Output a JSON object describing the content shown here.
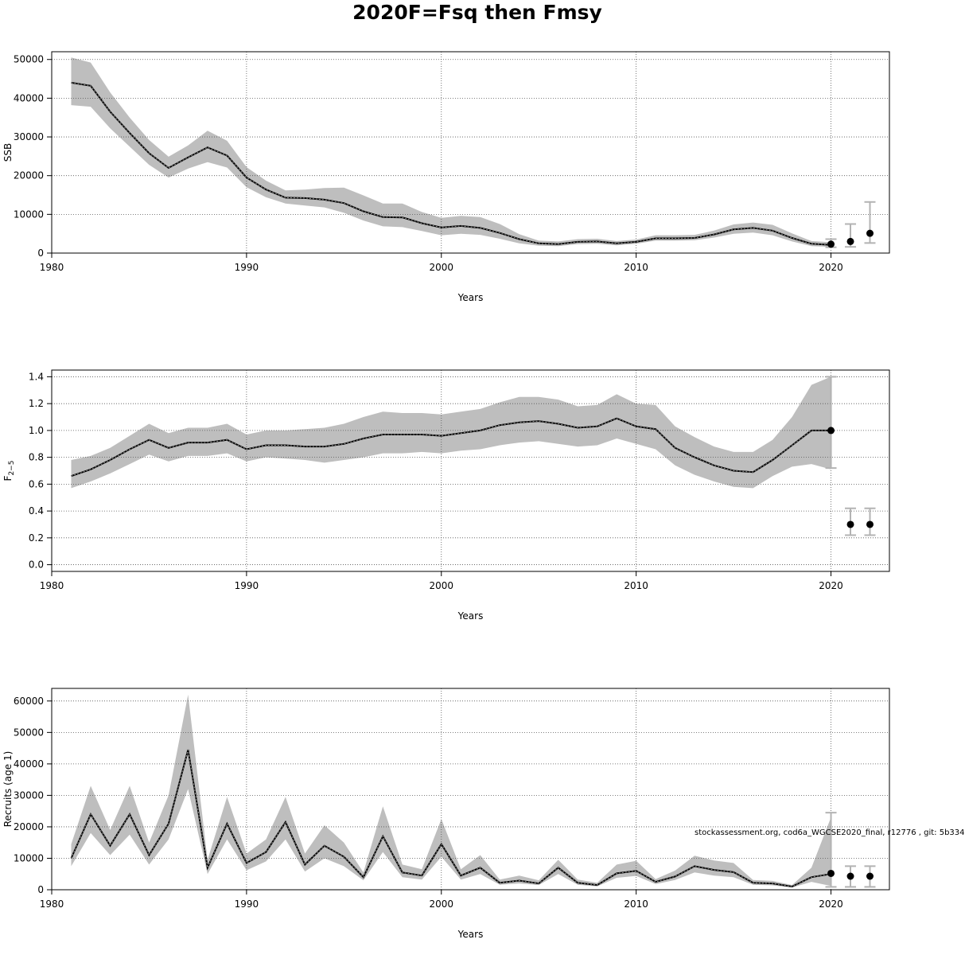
{
  "title": "2020F=Fsq then Fmsy",
  "footnote": "stockassessment.org, cod6a_WGCSE2020_final, r12776 , git: 5b334",
  "colors": {
    "band": "#bebebe",
    "line": "#000000",
    "grid": "#555555",
    "errorbar": "#b3b3b3"
  },
  "chart_data": [
    {
      "type": "area",
      "name": "ssb-chart",
      "xlabel": "Years",
      "ylabel": "SSB",
      "xlim": [
        1980,
        2023
      ],
      "ylim": [
        0,
        52000
      ],
      "xticks": [
        1980,
        1990,
        2000,
        2010,
        2020
      ],
      "yticks": [
        0,
        10000,
        20000,
        30000,
        40000,
        50000
      ],
      "grid": true,
      "years": [
        1981,
        1982,
        1983,
        1984,
        1985,
        1986,
        1987,
        1988,
        1989,
        1990,
        1991,
        1992,
        1993,
        1994,
        1995,
        1996,
        1997,
        1998,
        1999,
        2000,
        2001,
        2002,
        2003,
        2004,
        2005,
        2006,
        2007,
        2008,
        2009,
        2010,
        2011,
        2012,
        2013,
        2014,
        2015,
        2016,
        2017,
        2018,
        2019,
        2020
      ],
      "estimate": [
        44000,
        43200,
        36500,
        31000,
        25800,
        22000,
        24700,
        27300,
        25200,
        19500,
        16400,
        14300,
        14200,
        13800,
        12900,
        10800,
        9300,
        9200,
        7700,
        6600,
        7000,
        6500,
        5200,
        3600,
        2500,
        2300,
        2900,
        3000,
        2500,
        2900,
        3800,
        3800,
        3900,
        4800,
        6100,
        6500,
        5800,
        3900,
        2400,
        2100
      ],
      "lower": [
        38200,
        37800,
        32200,
        27500,
        22800,
        19500,
        21800,
        23500,
        22100,
        17000,
        14400,
        12800,
        12300,
        11800,
        10400,
        8400,
        6900,
        6700,
        5700,
        4600,
        5000,
        4700,
        3700,
        2500,
        1900,
        1800,
        2300,
        2400,
        2000,
        2400,
        3200,
        3200,
        3300,
        4000,
        5000,
        5300,
        4600,
        3000,
        1800,
        1600
      ],
      "upper": [
        50500,
        49200,
        41500,
        35000,
        29200,
        24900,
        27800,
        31600,
        29000,
        22200,
        18700,
        16200,
        16400,
        16800,
        16900,
        14900,
        12800,
        12800,
        10600,
        9100,
        9600,
        9300,
        7500,
        4900,
        3200,
        3000,
        3600,
        3700,
        3100,
        3500,
        4600,
        4600,
        4700,
        5800,
        7400,
        7900,
        7300,
        5100,
        3100,
        2800
      ],
      "forecast": [
        {
          "year": 2020,
          "median": 2300,
          "low": 1500,
          "high": 3600
        },
        {
          "year": 2021,
          "median": 3000,
          "low": 1600,
          "high": 7500
        },
        {
          "year": 2022,
          "median": 5100,
          "low": 2600,
          "high": 13200
        }
      ]
    },
    {
      "type": "area",
      "name": "f-chart",
      "xlabel": "Years",
      "ylabel_main": "F",
      "ylabel_sub": "2−5",
      "xlim": [
        1980,
        2023
      ],
      "ylim": [
        -0.05,
        1.45
      ],
      "xticks": [
        1980,
        1990,
        2000,
        2010,
        2020
      ],
      "yticks": [
        0.0,
        0.2,
        0.4,
        0.6,
        0.8,
        1.0,
        1.2,
        1.4
      ],
      "ytick_labels": [
        "0.0",
        "0.2",
        "0.4",
        "0.6",
        "0.8",
        "1.0",
        "1.2",
        "1.4"
      ],
      "grid": true,
      "years": [
        1981,
        1982,
        1983,
        1984,
        1985,
        1986,
        1987,
        1988,
        1989,
        1990,
        1991,
        1992,
        1993,
        1994,
        1995,
        1996,
        1997,
        1998,
        1999,
        2000,
        2001,
        2002,
        2003,
        2004,
        2005,
        2006,
        2007,
        2008,
        2009,
        2010,
        2011,
        2012,
        2013,
        2014,
        2015,
        2016,
        2017,
        2018,
        2019,
        2020
      ],
      "estimate": [
        0.66,
        0.71,
        0.78,
        0.86,
        0.93,
        0.87,
        0.91,
        0.91,
        0.93,
        0.86,
        0.89,
        0.89,
        0.88,
        0.88,
        0.9,
        0.94,
        0.97,
        0.97,
        0.97,
        0.96,
        0.98,
        1.0,
        1.04,
        1.06,
        1.07,
        1.05,
        1.02,
        1.03,
        1.09,
        1.03,
        1.01,
        0.87,
        0.8,
        0.74,
        0.7,
        0.69,
        0.78,
        0.89,
        1.0,
        1.0
      ],
      "lower": [
        0.57,
        0.62,
        0.68,
        0.75,
        0.82,
        0.77,
        0.81,
        0.81,
        0.83,
        0.77,
        0.8,
        0.79,
        0.78,
        0.76,
        0.78,
        0.8,
        0.83,
        0.83,
        0.84,
        0.83,
        0.85,
        0.86,
        0.89,
        0.91,
        0.92,
        0.9,
        0.88,
        0.89,
        0.94,
        0.9,
        0.86,
        0.74,
        0.67,
        0.62,
        0.58,
        0.57,
        0.66,
        0.73,
        0.75,
        0.71
      ],
      "upper": [
        0.78,
        0.81,
        0.87,
        0.96,
        1.05,
        0.98,
        1.02,
        1.02,
        1.05,
        0.97,
        1.0,
        1.0,
        1.01,
        1.02,
        1.05,
        1.1,
        1.14,
        1.13,
        1.13,
        1.12,
        1.14,
        1.16,
        1.21,
        1.25,
        1.25,
        1.23,
        1.18,
        1.19,
        1.27,
        1.2,
        1.19,
        1.03,
        0.95,
        0.88,
        0.84,
        0.84,
        0.93,
        1.1,
        1.34,
        1.4
      ],
      "forecast": [
        {
          "year": 2020,
          "median": 1.0,
          "low": 0.72,
          "high": 1.4
        },
        {
          "year": 2021,
          "median": 0.3,
          "low": 0.22,
          "high": 0.42
        },
        {
          "year": 2022,
          "median": 0.3,
          "low": 0.22,
          "high": 0.42
        }
      ]
    },
    {
      "type": "area",
      "name": "recruits-chart",
      "xlabel": "Years",
      "ylabel": "Recruits (age 1)",
      "xlim": [
        1980,
        2023
      ],
      "ylim": [
        0,
        64000
      ],
      "xticks": [
        1980,
        1990,
        2000,
        2010,
        2020
      ],
      "yticks": [
        0,
        10000,
        20000,
        30000,
        40000,
        50000,
        60000
      ],
      "grid": true,
      "years": [
        1981,
        1982,
        1983,
        1984,
        1985,
        1986,
        1987,
        1988,
        1989,
        1990,
        1991,
        1992,
        1993,
        1994,
        1995,
        1996,
        1997,
        1998,
        1999,
        2000,
        2001,
        2002,
        2003,
        2004,
        2005,
        2006,
        2007,
        2008,
        2009,
        2010,
        2011,
        2012,
        2013,
        2014,
        2015,
        2016,
        2017,
        2018,
        2019,
        2020
      ],
      "estimate": [
        10000,
        24000,
        14000,
        24000,
        11000,
        21000,
        44500,
        7000,
        21000,
        8500,
        12000,
        21500,
        8000,
        14000,
        10500,
        4000,
        17000,
        5500,
        4500,
        14500,
        4500,
        7000,
        2200,
        2900,
        2000,
        7000,
        2200,
        1500,
        5200,
        6000,
        2500,
        4200,
        7500,
        6300,
        5600,
        2200,
        2000,
        1000,
        4000,
        5000
      ],
      "lower": [
        7500,
        18000,
        11000,
        17500,
        8000,
        16000,
        32000,
        5000,
        16000,
        6200,
        9000,
        16000,
        5800,
        10000,
        7500,
        3000,
        12000,
        4000,
        3200,
        10500,
        3200,
        5000,
        1600,
        2000,
        1500,
        5000,
        1600,
        1100,
        3800,
        4400,
        1800,
        3100,
        5500,
        4500,
        4000,
        1600,
        1400,
        700,
        2500,
        1200
      ],
      "upper": [
        14500,
        33000,
        19000,
        33000,
        15000,
        30000,
        62000,
        9500,
        29500,
        11500,
        16000,
        29500,
        11500,
        20500,
        15000,
        5500,
        26500,
        8000,
        6500,
        22500,
        6500,
        11000,
        3200,
        4500,
        3000,
        9500,
        3200,
        2200,
        8000,
        9200,
        3400,
        6100,
        10800,
        9300,
        8500,
        3100,
        2800,
        1500,
        7000,
        23000
      ],
      "forecast": [
        {
          "year": 2020,
          "median": 5200,
          "low": 900,
          "high": 24500
        },
        {
          "year": 2021,
          "median": 4300,
          "low": 900,
          "high": 7500
        },
        {
          "year": 2022,
          "median": 4300,
          "low": 900,
          "high": 7500
        }
      ]
    }
  ]
}
